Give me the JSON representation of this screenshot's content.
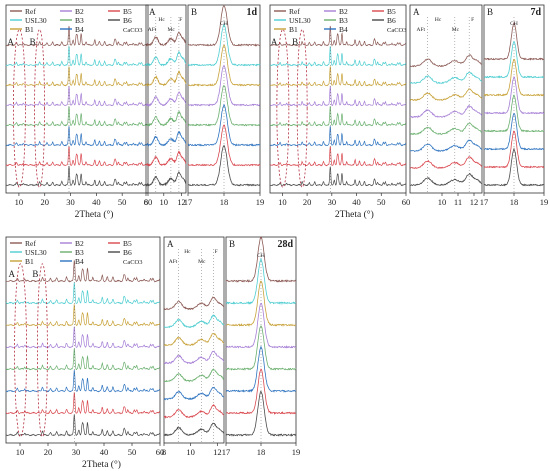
{
  "figure": {
    "series_colors": {
      "Ref": "#8b5a55",
      "USL30": "#4ecdd1",
      "B1": "#c8a23a",
      "B2": "#a67fd6",
      "B3": "#6bb06f",
      "B4": "#2f74c0",
      "B5": "#d9484f",
      "B6": "#4a4a4a"
    }
  },
  "chart_data": [
    {
      "type": "line",
      "panel": "main-1d",
      "xlabel": "2Theta (°)",
      "xlim": [
        5,
        60
      ],
      "xticks": [
        10,
        20,
        30,
        40,
        50,
        60
      ],
      "legend": [
        "Ref",
        "USL30",
        "B1",
        "B2",
        "B3",
        "B4",
        "B5",
        "B6",
        "CaCO3"
      ],
      "legend_placement": "top-left",
      "region_labels": [
        "A",
        "B"
      ],
      "series": [
        {
          "name": "Ref"
        },
        {
          "name": "B2"
        },
        {
          "name": "B5"
        },
        {
          "name": "USL30"
        },
        {
          "name": "B3"
        },
        {
          "name": "B6"
        },
        {
          "name": "B1"
        },
        {
          "name": "B4"
        }
      ]
    },
    {
      "type": "line",
      "panel": "zoomA-1d",
      "title": "A",
      "xlim": [
        8,
        12.5
      ],
      "xticks": [
        8,
        10,
        12
      ],
      "annotations": [
        "AFt",
        "Hc",
        "Mc",
        "F"
      ]
    },
    {
      "type": "line",
      "panel": "zoomB-1d",
      "title": "B",
      "age": "1d",
      "xlim": [
        17,
        19
      ],
      "xticks": [
        17,
        18,
        19
      ],
      "annotations": [
        "CH"
      ]
    },
    {
      "type": "line",
      "panel": "main-7d",
      "xlabel": "2Theta (°)",
      "xlim": [
        5,
        60
      ],
      "xticks": [
        10,
        20,
        30,
        40,
        50,
        60
      ],
      "legend": [
        "Ref",
        "USL30",
        "B1",
        "B2",
        "B3",
        "B4",
        "B5",
        "B6",
        "CaCO3"
      ]
    },
    {
      "type": "line",
      "panel": "zoomA-7d",
      "title": "A",
      "xlim": [
        8,
        12.5
      ],
      "xticks": [
        10,
        11,
        12
      ],
      "annotations": [
        "AFt",
        "Hc",
        "Mc",
        "F"
      ]
    },
    {
      "type": "line",
      "panel": "zoomB-7d",
      "title": "B",
      "age": "7d",
      "xlim": [
        17,
        19
      ],
      "xticks": [
        17,
        18,
        19
      ],
      "annotations": [
        "CH"
      ]
    },
    {
      "type": "line",
      "panel": "main-28d",
      "xlabel": "2Theta (°)",
      "xlim": [
        5,
        60
      ],
      "xticks": [
        10,
        20,
        30,
        40,
        50,
        60
      ],
      "legend": [
        "Ref",
        "USL30",
        "B1",
        "B2",
        "B3",
        "B4",
        "B5",
        "B6",
        "CaCO3"
      ]
    },
    {
      "type": "line",
      "panel": "zoomA-28d",
      "title": "A",
      "xlim": [
        8,
        12.5
      ],
      "xticks": [
        8,
        10,
        12
      ],
      "annotations": [
        "AFt",
        "Hc",
        "Mc",
        "F"
      ]
    },
    {
      "type": "line",
      "panel": "zoomB-28d",
      "title": "B",
      "age": "28d",
      "xlim": [
        17,
        19
      ],
      "xticks": [
        17,
        18,
        19
      ],
      "annotations": [
        "CH"
      ]
    }
  ]
}
